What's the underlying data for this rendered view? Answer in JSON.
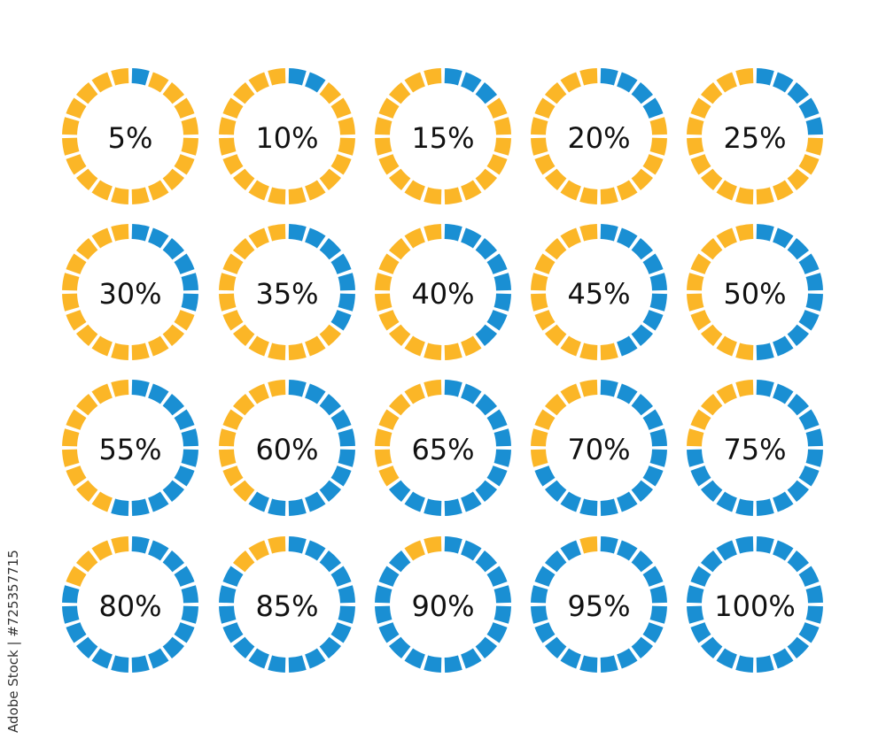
{
  "colors": {
    "filled": "#1a8fd3",
    "empty": "#fbb627",
    "text": "#111111"
  },
  "segments_per_ring": 20,
  "progress_rings": [
    {
      "label": "5%",
      "percent": 5
    },
    {
      "label": "10%",
      "percent": 10
    },
    {
      "label": "15%",
      "percent": 15
    },
    {
      "label": "20%",
      "percent": 20
    },
    {
      "label": "25%",
      "percent": 25
    },
    {
      "label": "30%",
      "percent": 30
    },
    {
      "label": "35%",
      "percent": 35
    },
    {
      "label": "40%",
      "percent": 40
    },
    {
      "label": "45%",
      "percent": 45
    },
    {
      "label": "50%",
      "percent": 50
    },
    {
      "label": "55%",
      "percent": 55
    },
    {
      "label": "60%",
      "percent": 60
    },
    {
      "label": "65%",
      "percent": 65
    },
    {
      "label": "70%",
      "percent": 70
    },
    {
      "label": "75%",
      "percent": 75
    },
    {
      "label": "80%",
      "percent": 80
    },
    {
      "label": "85%",
      "percent": 85
    },
    {
      "label": "90%",
      "percent": 90
    },
    {
      "label": "95%",
      "percent": 95
    },
    {
      "label": "100%",
      "percent": 100
    }
  ],
  "credit": "Adobe Stock | #725357715"
}
